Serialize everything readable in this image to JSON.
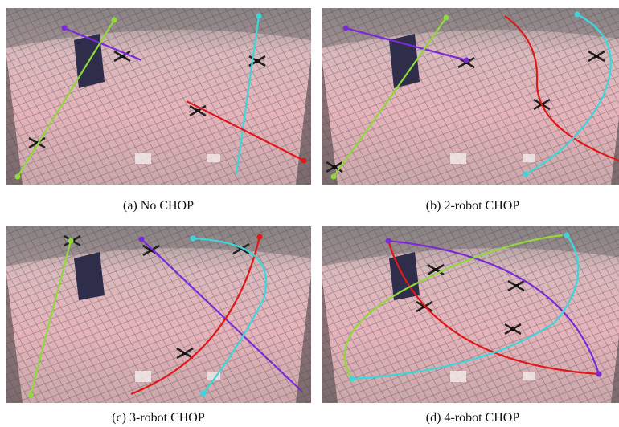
{
  "panels": [
    {
      "caption": "(a) No CHOP"
    },
    {
      "caption": "(b) 2-robot CHOP"
    },
    {
      "caption": "(c) 3-robot CHOP"
    },
    {
      "caption": "(d) 4-robot CHOP"
    }
  ]
}
